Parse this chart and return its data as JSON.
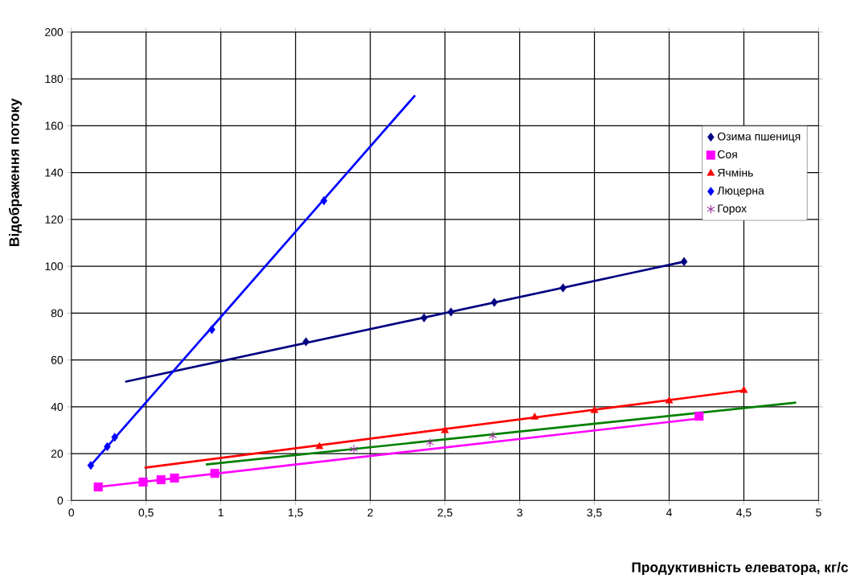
{
  "chart_data": {
    "type": "scatter",
    "xlabel": "Продуктивність елеватора, кг/с",
    "ylabel": "Відображення потоку",
    "xlim": [
      0,
      5
    ],
    "ylim": [
      0,
      200
    ],
    "xticks": [
      0,
      {
        "value": 0.5,
        "label": "0,5"
      },
      1,
      {
        "value": 1.5,
        "label": "1,5"
      },
      2,
      {
        "value": 2.5,
        "label": "2,5"
      },
      3,
      {
        "value": 3.5,
        "label": "3,5"
      },
      4,
      {
        "value": 4.5,
        "label": "4,5"
      },
      5
    ],
    "yticks": [
      0,
      20,
      40,
      60,
      80,
      100,
      120,
      140,
      160,
      180,
      200
    ],
    "grid": true,
    "legend": "top right",
    "series": [
      {
        "type": "line",
        "marker": "none",
        "color": "#000080",
        "x": [
          0.36,
          4.1
        ],
        "values": [
          50.7,
          102
        ]
      },
      {
        "type": "line",
        "marker": "none",
        "color": "#ff00ff",
        "x": [
          0.18,
          4.2
        ],
        "values": [
          5.8,
          35
        ]
      },
      {
        "type": "line",
        "marker": "none",
        "color": "#ff0000",
        "x": [
          0.49,
          4.5
        ],
        "values": [
          14,
          47
        ]
      },
      {
        "type": "line",
        "marker": "none",
        "color": "#0000ff",
        "x": [
          0.13,
          2.3
        ],
        "values": [
          15,
          173
        ]
      },
      {
        "type": "line",
        "marker": "none",
        "color": "#008000",
        "x": [
          0.9,
          4.85
        ],
        "values": [
          15.4,
          41.8
        ]
      },
      {
        "name": "Озима пшениця",
        "marker": "diamond",
        "color": "#000080",
        "x": [
          1.57,
          2.36,
          2.54,
          2.83,
          3.29,
          4.1
        ],
        "values": [
          67.8,
          78,
          80.5,
          84.6,
          90.8,
          102
        ]
      },
      {
        "name": "Соя",
        "marker": "square",
        "color": "#ff00ff",
        "x": [
          0.18,
          0.48,
          0.6,
          0.69,
          0.96,
          4.2
        ],
        "values": [
          5.8,
          7.9,
          8.9,
          9.6,
          11.6,
          36
        ]
      },
      {
        "name": "Ячмінь",
        "marker": "triangle",
        "color": "#ff0000",
        "x": [
          1.66,
          2.5,
          3.1,
          3.5,
          4.0,
          4.5
        ],
        "values": [
          23,
          29.8,
          35.6,
          38.4,
          42.5,
          47
        ]
      },
      {
        "name": "Люцерна",
        "marker": "diamond",
        "color": "#0000ff",
        "x": [
          0.13,
          0.24,
          0.29,
          0.94,
          1.69
        ],
        "values": [
          15,
          23,
          27,
          73,
          128
        ]
      },
      {
        "name": "Горох",
        "marker": "cross",
        "color": "#993399",
        "x": [
          1.89,
          2.4,
          2.82
        ],
        "values": [
          21.9,
          24.7,
          27.7
        ]
      }
    ]
  }
}
